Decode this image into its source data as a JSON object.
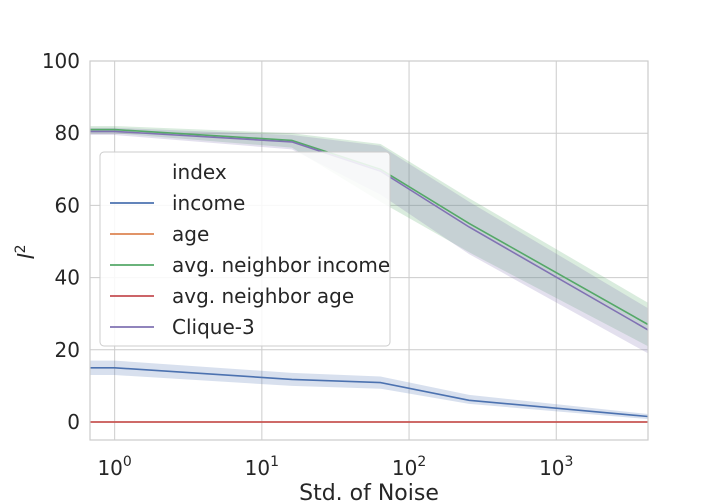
{
  "chart_data": {
    "type": "line",
    "title": "",
    "xlabel": "Std. of Noise",
    "ylabel": "l",
    "ylabel_superscript": "2",
    "xscale": "log",
    "xlim": [
      0.68,
      4200
    ],
    "ylim": [
      -5,
      100
    ],
    "x_ticks": [
      {
        "value": 1,
        "base": "10",
        "exp": "0"
      },
      {
        "value": 10,
        "base": "10",
        "exp": "1"
      },
      {
        "value": 100,
        "base": "10",
        "exp": "2"
      },
      {
        "value": 1000,
        "base": "10",
        "exp": "3"
      }
    ],
    "y_ticks": [
      0,
      20,
      40,
      60,
      80,
      100
    ],
    "grid": true,
    "legend": {
      "placement": "center-left",
      "title": "index"
    },
    "x": [
      0.68,
      1,
      16,
      64,
      256,
      4200
    ],
    "series": [
      {
        "name": "income",
        "color": "#4c72b0",
        "values": [
          15,
          15,
          11.8,
          10.9,
          6,
          1.5
        ],
        "lower": [
          13,
          13,
          10,
          9.2,
          5,
          0.8
        ],
        "upper": [
          17,
          17,
          13.6,
          12.6,
          7.5,
          2.2
        ]
      },
      {
        "name": "age",
        "color": "#dd8452",
        "values": [
          0,
          0,
          0,
          0,
          0,
          0
        ],
        "lower": [
          0,
          0,
          0,
          0,
          0,
          0
        ],
        "upper": [
          0,
          0,
          0,
          0,
          0,
          0
        ]
      },
      {
        "name": "avg. neighbor income",
        "color": "#55a868",
        "values": [
          81,
          81,
          78,
          70,
          55,
          27
        ],
        "lower": [
          80,
          80,
          76,
          61,
          47,
          21
        ],
        "upper": [
          82,
          82,
          80,
          77,
          62,
          33
        ]
      },
      {
        "name": "avg. neighbor age",
        "color": "#c44e52",
        "values": [
          0,
          0,
          0,
          0,
          0,
          0
        ],
        "lower": [
          0,
          0,
          0,
          0,
          0,
          0
        ],
        "upper": [
          0,
          0,
          0,
          0,
          0,
          0
        ]
      },
      {
        "name": "Clique-3",
        "color": "#8172b3",
        "values": [
          80.5,
          80.5,
          77.6,
          69.5,
          54,
          25.5
        ],
        "lower": [
          79.5,
          79.5,
          75.5,
          63,
          46.5,
          19
        ],
        "upper": [
          81.5,
          81.5,
          79.5,
          76.5,
          61,
          31.5
        ]
      }
    ]
  }
}
